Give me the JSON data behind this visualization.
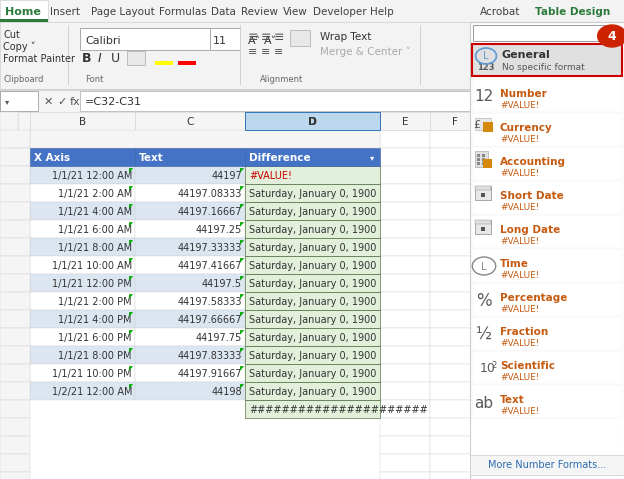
{
  "bg_color": "#f0f0f0",
  "white": "#ffffff",
  "ribbon_bg": "#f3f3f3",
  "tab_home_color": "#ffffff",
  "tab_home_underline": "#2b7a3b",
  "tab_others": [
    "Insert",
    "Page Layout",
    "Formulas",
    "Data",
    "Review",
    "View",
    "Developer",
    "Help"
  ],
  "tab_right": [
    "Acrobat",
    "Table Design"
  ],
  "ribbon_groups": {
    "Clipboard": [
      "Cut",
      "Copy ⌄",
      "Format Painter"
    ],
    "Font": [
      "Calibri",
      "11",
      "B",
      "I",
      "U"
    ],
    "Alignment": [
      "Wrap Text",
      "Merge & Center ⌄"
    ]
  },
  "formula_bar_text": "=C32-C31",
  "col_headers": [
    "B",
    "C",
    "D",
    "E",
    "F"
  ],
  "table_headers": [
    "X Axis",
    "Text",
    "Difference"
  ],
  "header_bg": "#4472c4",
  "header_text_color": "#ffffff",
  "row_bg_even": "#dce6f1",
  "row_bg_odd": "#ffffff",
  "col_b_data": [
    "1/1/21 12:00 AM",
    "1/1/21 2:00 AM",
    "1/1/21 4:00 AM",
    "1/1/21 6:00 AM",
    "1/1/21 8:00 AM",
    "1/1/21 10:00 AM",
    "1/1/21 12:00 PM",
    "1/1/21 2:00 PM",
    "1/1/21 4:00 PM",
    "1/1/21 6:00 PM",
    "1/1/21 8:00 PM",
    "1/1/21 10:00 PM",
    "1/2/21 12:00 AM"
  ],
  "col_c_data": [
    "44197",
    "44197.08333",
    "44197.16667",
    "44197.25",
    "44197.33333",
    "44197.41667",
    "44197.5",
    "44197.58333",
    "44197.66667",
    "44197.75",
    "44197.83333",
    "44197.91667",
    "44198"
  ],
  "col_d_data": [
    "#VALUE!",
    "Saturday, January 0, 1900",
    "Saturday, January 0, 1900",
    "Saturday, January 0, 1900",
    "Saturday, January 0, 1900",
    "Saturday, January 0, 1900",
    "Saturday, January 0, 1900",
    "Saturday, January 0, 1900",
    "Saturday, January 0, 1900",
    "Saturday, January 0, 1900",
    "Saturday, January 0, 1900",
    "Saturday, January 0, 1900",
    "Saturday, January 0, 1900"
  ],
  "hash_row": "######################",
  "selected_col_d_bg": "#e2efda",
  "selected_col_d_border": "#375623",
  "panel_bg": "#ffffff",
  "panel_border": "#c8c8c8",
  "panel_selected_bg": "#e0e0e0",
  "panel_selected_border": "#cc0000",
  "general_icon_color": "#5b9bd5",
  "number_badge": "4",
  "badge_color": "#cc2200",
  "format_items": [
    {
      "symbol": "12",
      "name": "Number",
      "sub": "#VALUE!",
      "icon": "number"
    },
    {
      "symbol": "£",
      "name": "Currency",
      "sub": "#VALUE!",
      "icon": "currency"
    },
    {
      "symbol": "calc",
      "name": "Accounting",
      "sub": "#VALUE!",
      "icon": "accounting"
    },
    {
      "symbol": "cal1",
      "name": "Short Date",
      "sub": "#VALUE!",
      "icon": "short_date"
    },
    {
      "symbol": "cal2",
      "name": "Long Date",
      "sub": "#VALUE!",
      "icon": "long_date"
    },
    {
      "symbol": "clock",
      "name": "Time",
      "sub": "#VALUE!",
      "icon": "time"
    },
    {
      "symbol": "%",
      "name": "Percentage",
      "sub": "#VALUE!",
      "icon": "percentage"
    },
    {
      "symbol": "1/2",
      "name": "Fraction",
      "sub": "#VALUE!",
      "icon": "fraction"
    },
    {
      "symbol": "10²",
      "name": "Scientific",
      "sub": "#VALUE!",
      "icon": "scientific"
    },
    {
      "symbol": "ab",
      "name": "Text",
      "sub": "#VALUE!",
      "icon": "text"
    }
  ],
  "more_formats": "More Number Formats...",
  "item_name_color": "#c55a11",
  "item_sub_color": "#c55a11",
  "item_symbol_color": "#595959"
}
